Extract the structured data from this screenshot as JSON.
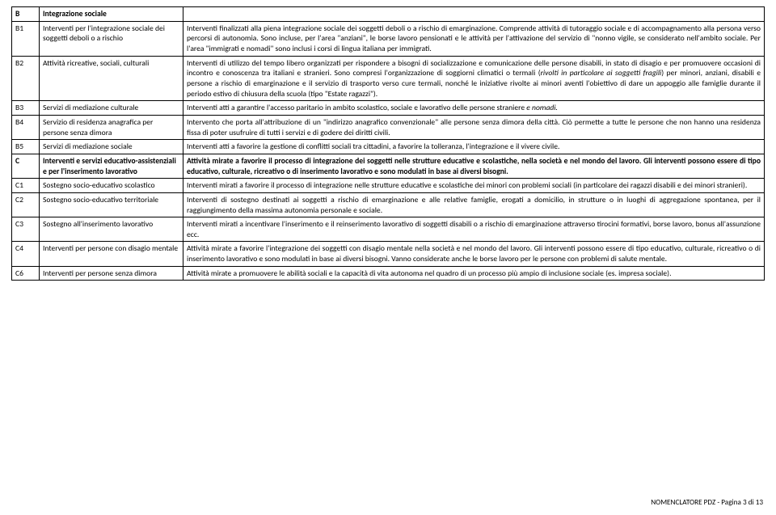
{
  "rows": [
    {
      "code": "B",
      "title_html": "<span class=\"bold\">Integrazione sociale</span>",
      "desc_html": "",
      "header": true
    },
    {
      "code": "B1",
      "title_html": "Interventi per l'integrazione sociale dei soggetti deboli o a rischio",
      "desc_html": "Interventi finalizzati alla piena integrazione sociale dei soggetti deboli o a rischio di emarginazione. Comprende attività di tutoraggio sociale e di accompagnamento alla persona verso percorsi di autonomia. Sono incluse, per l'area \"anziani\", le borse lavoro pensionati e le attività per l'attivazione del servizio di \"nonno vigile, se considerato nell'ambito sociale. Per l'area \"immigrati e nomadi\" sono inclusi i corsi di lingua italiana per immigrati."
    },
    {
      "code": "B2",
      "title_html": "Attività ricreative, sociali, culturali",
      "desc_html": "Interventi di utilizzo del tempo libero organizzati per rispondere a bisogni di socializzazione e comunicazione delle persone disabili, in stato di disagio e per promuovere occasioni di incontro e conoscenza tra italiani e stranieri. Sono compresi l'organizzazione di soggiorni climatici o termali (<span class=\"italic\">rivolti in particolare ai soggetti fragili</span>) per minori, anziani, disabili e persone a rischio di emarginazione e il servizio di trasporto verso cure termali, nonché le iniziative rivolte ai minori aventi l'obiettivo di dare un appoggio alle famiglie durante il periodo estivo di chiusura della scuola (tipo \"Estate ragazzi\")."
    },
    {
      "code": "B3",
      "title_html": "Servizi di mediazione culturale",
      "desc_html": "Interventi atti a garantire l'accesso paritario in ambito scolastico, sociale e lavorativo delle persone straniere <span class=\"italic\">e nomadi.</span>"
    },
    {
      "code": "B4",
      "title_html": "Servizio di residenza anagrafica per persone senza dimora",
      "desc_html": "Intervento che porta all'attribuzione di un \"indirizzo anagrafico convenzionale\" alle persone senza dimora della città. Ciò permette a tutte le persone che non hanno una residenza fissa di poter usufruire di tutti i servizi e di godere dei diritti civili."
    },
    {
      "code": "B5",
      "title_html": "Servizi di mediazione sociale",
      "desc_html": "Interventi atti a favorire la gestione di conflitti sociali tra cittadini, a favorire la tolleranza, l'integrazione e il vivere civile."
    },
    {
      "code": "C",
      "title_html": "<span class=\"bold\">Interventi e servizi educativo-assistenziali e per l'inserimento lavorativo</span>",
      "desc_html": "<span class=\"bold\">Attività mirate a favorire il processo di integrazione dei soggetti nelle strutture educative e scolastiche, nella società e nel mondo del lavoro. Gli interventi possono essere di tipo educativo, culturale, ricreativo o di inserimento lavorativo e sono modulati in base ai diversi bisogni.</span>",
      "header": true
    },
    {
      "code": "C1",
      "title_html": "Sostegno socio-educativo scolastico",
      "desc_html": "Interventi mirati a favorire il processo di integrazione nelle strutture educative e scolastiche dei minori con problemi sociali (in particolare dei ragazzi disabili e dei minori stranieri)."
    },
    {
      "code": "C2",
      "title_html": "Sostegno socio-educativo territoriale",
      "desc_html": "Interventi di sostegno destinati ai soggetti a rischio di emarginazione e alle relative famiglie, erogati a domicilio, in strutture o in luoghi di aggregazione spontanea, per il raggiungimento della massima autonomia personale e sociale."
    },
    {
      "code": "C3",
      "title_html": "Sostegno all'inserimento lavorativo",
      "desc_html": "Interventi mirati a incentivare l'inserimento e il reinserimento lavorativo di soggetti disabili o a rischio di emarginazione attraverso tirocini formativi, borse lavoro, bonus all'assunzione ecc."
    },
    {
      "code": "C4",
      "title_html": "Interventi per persone con disagio mentale",
      "desc_html": "Attività mirate a favorire l'integrazione dei soggetti con disagio mentale nella società e nel mondo del lavoro. Gli interventi possono essere di tipo educativo, culturale, ricreativo o di inserimento lavorativo e sono modulati in base ai diversi bisogni. Vanno considerate anche le borse lavoro per le persone con problemi di salute mentale."
    },
    {
      "code": "C6",
      "title_html": "Interventi per persone senza dimora",
      "desc_html": "Attività mirate a promuovere le abilità sociali e la capacità di vita autonoma nel quadro di un processo più ampio di inclusione sociale (es. impresa sociale)."
    }
  ],
  "footer": "NOMENCLATORE PDZ - Pagina 3 di 13"
}
